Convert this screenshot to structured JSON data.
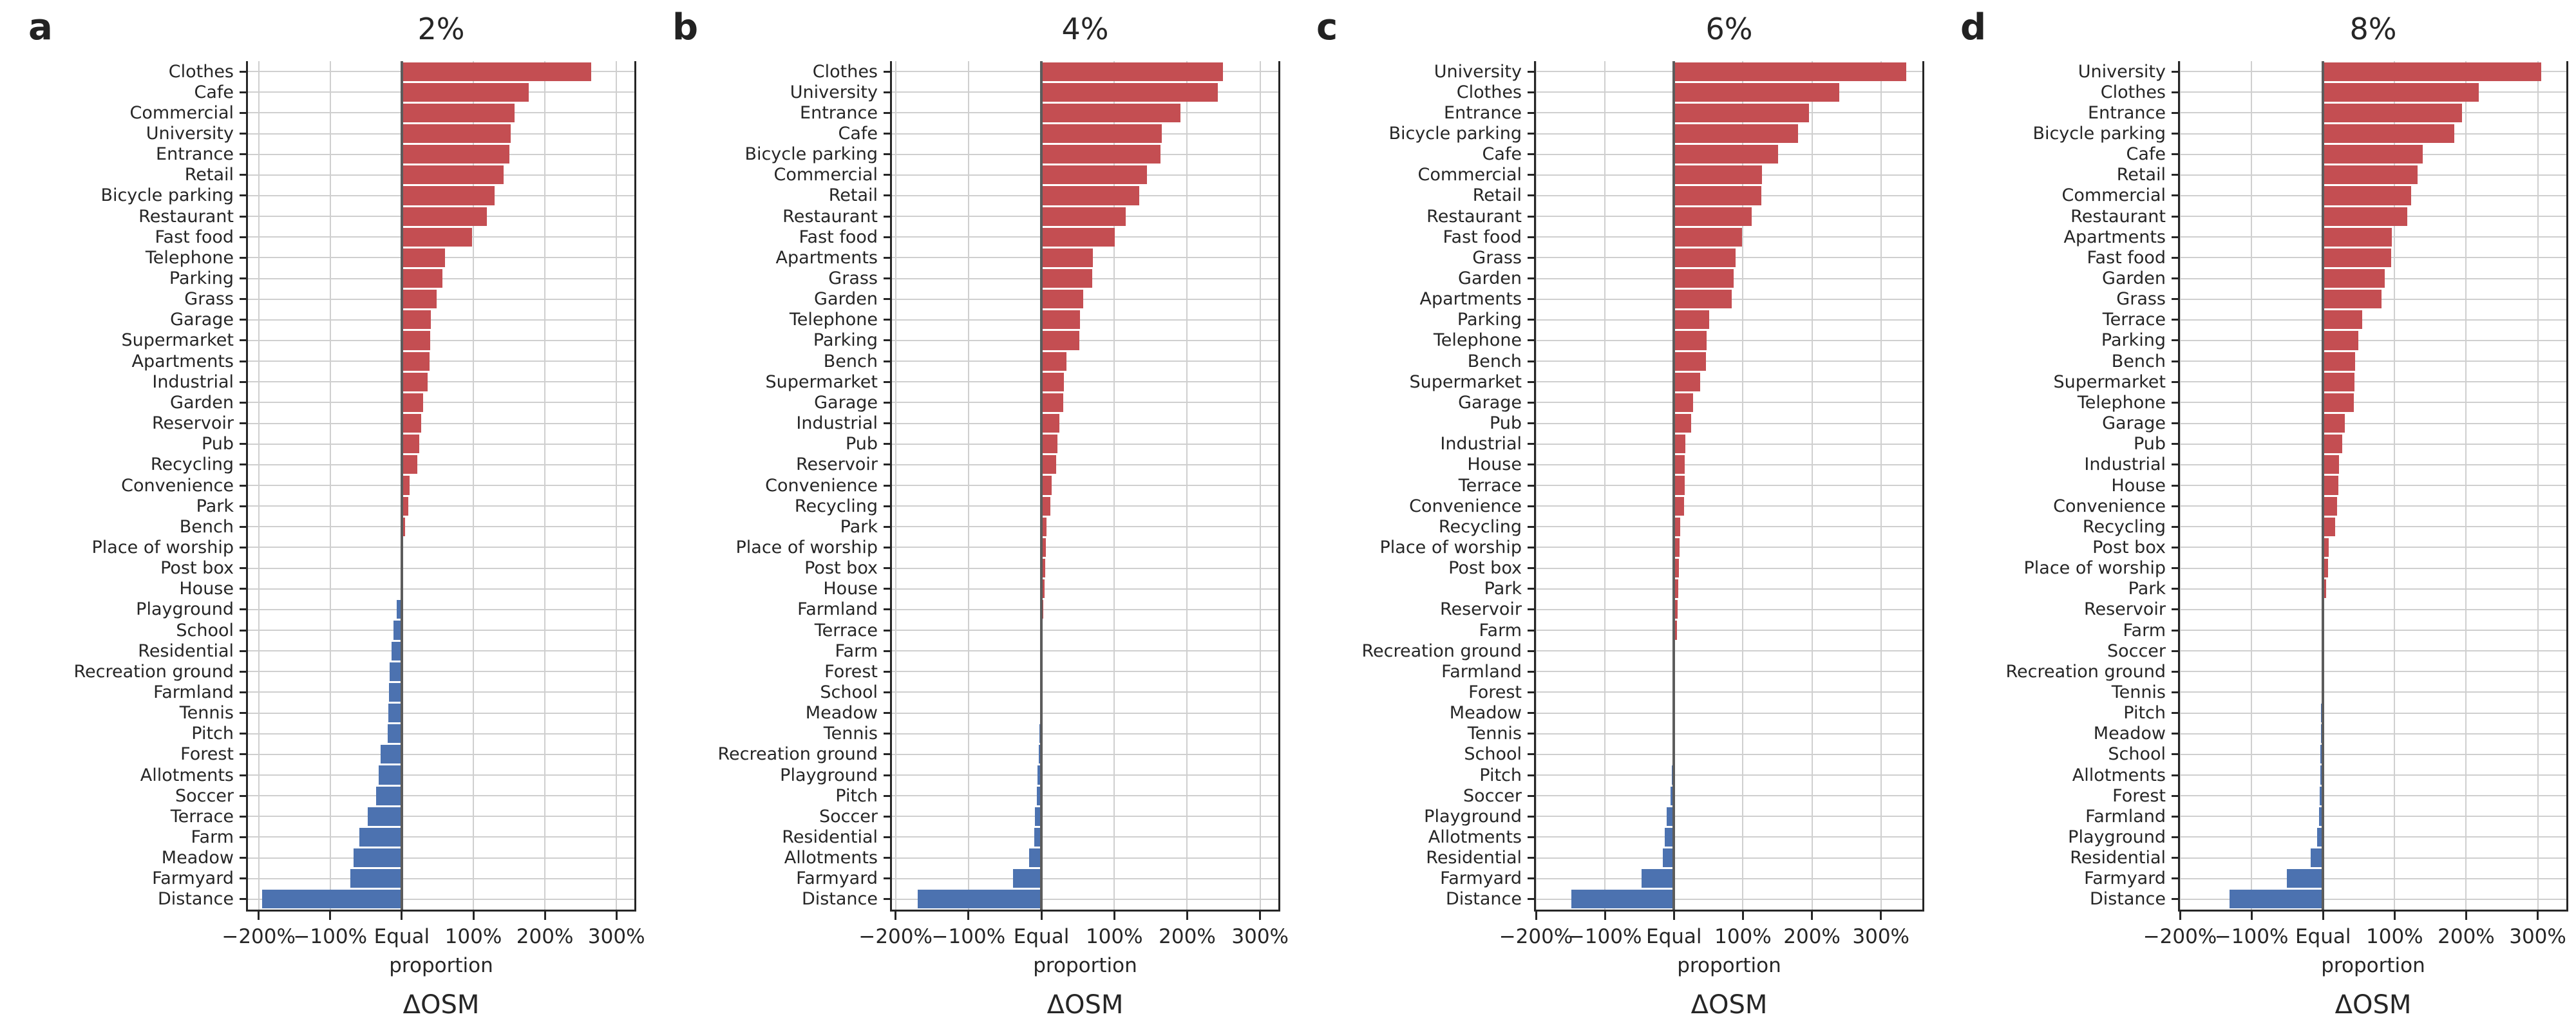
{
  "figure": {
    "xlabel": "proportion",
    "axis_note": "ΔOSM",
    "x_ticks": [
      {
        "v": -200,
        "label": "−200%"
      },
      {
        "v": -100,
        "label": "−100%"
      },
      {
        "v": 0,
        "label": "Equal"
      },
      {
        "v": 100,
        "label": "100%"
      },
      {
        "v": 200,
        "label": "200%"
      },
      {
        "v": 300,
        "label": "300%"
      }
    ],
    "colors": {
      "positive_bar": "#c44e52",
      "negative_bar": "#4c72b0",
      "gridline": "#cfcfcf",
      "equal_line": "#5c5c5c",
      "spine": "#262626",
      "text": "#262626"
    }
  },
  "chart_data": [
    {
      "type": "bar",
      "orientation": "horizontal",
      "panel_letter": "a",
      "title": "2%",
      "xlabel": "proportion",
      "axis_note": "ΔOSM",
      "xlim": [
        -215,
        325
      ],
      "grid": true,
      "categories": [
        "Clothes",
        "Cafe",
        "Commercial",
        "University",
        "Entrance",
        "Retail",
        "Bicycle parking",
        "Restaurant",
        "Fast food",
        "Telephone",
        "Parking",
        "Grass",
        "Garage",
        "Supermarket",
        "Apartments",
        "Industrial",
        "Garden",
        "Reservoir",
        "Pub",
        "Recycling",
        "Convenience",
        "Park",
        "Bench",
        "Place of worship",
        "Post box",
        "House",
        "Playground",
        "School",
        "Residential",
        "Recreation ground",
        "Farmland",
        "Tennis",
        "Pitch",
        "Forest",
        "Allotments",
        "Soccer",
        "Terrace",
        "Farm",
        "Meadow",
        "Farmyard",
        "Distance"
      ],
      "values": [
        265,
        177,
        158,
        152,
        150,
        142,
        130,
        119,
        98,
        60,
        57,
        49,
        41,
        40,
        39,
        36,
        30,
        27,
        24,
        22,
        11,
        9,
        5,
        2,
        1,
        0,
        -7,
        -12,
        -14,
        -17,
        -18,
        -19,
        -20,
        -30,
        -32,
        -36,
        -48,
        -59,
        -67,
        -72,
        -195
      ]
    },
    {
      "type": "bar",
      "orientation": "horizontal",
      "panel_letter": "b",
      "title": "4%",
      "xlabel": "proportion",
      "axis_note": "ΔOSM",
      "xlim": [
        -205,
        325
      ],
      "grid": true,
      "categories": [
        "Clothes",
        "University",
        "Entrance",
        "Cafe",
        "Bicycle parking",
        "Commercial",
        "Retail",
        "Restaurant",
        "Fast food",
        "Apartments",
        "Grass",
        "Garden",
        "Telephone",
        "Parking",
        "Bench",
        "Supermarket",
        "Garage",
        "Industrial",
        "Pub",
        "Reservoir",
        "Convenience",
        "Recycling",
        "Park",
        "Place of worship",
        "Post box",
        "House",
        "Farmland",
        "Terrace",
        "Farm",
        "Forest",
        "School",
        "Meadow",
        "Tennis",
        "Recreation ground",
        "Playground",
        "Pitch",
        "Soccer",
        "Residential",
        "Allotments",
        "Farmyard",
        "Distance"
      ],
      "values": [
        249,
        242,
        191,
        165,
        163,
        145,
        134,
        116,
        101,
        71,
        70,
        57,
        53,
        52,
        34,
        31,
        30,
        25,
        22,
        20,
        14,
        12,
        7,
        6,
        5,
        4,
        3,
        1,
        0.5,
        0.5,
        0,
        -2,
        -3,
        -4,
        -5,
        -6,
        -9,
        -10,
        -17,
        -39,
        -170
      ]
    },
    {
      "type": "bar",
      "orientation": "horizontal",
      "panel_letter": "c",
      "title": "6%",
      "xlabel": "proportion",
      "axis_note": "ΔOSM",
      "xlim": [
        -200,
        360
      ],
      "grid": true,
      "categories": [
        "University",
        "Clothes",
        "Entrance",
        "Bicycle parking",
        "Cafe",
        "Commercial",
        "Retail",
        "Restaurant",
        "Fast food",
        "Grass",
        "Garden",
        "Apartments",
        "Parking",
        "Telephone",
        "Bench",
        "Supermarket",
        "Garage",
        "Pub",
        "Industrial",
        "House",
        "Terrace",
        "Convenience",
        "Recycling",
        "Place of worship",
        "Post box",
        "Park",
        "Reservoir",
        "Farm",
        "Recreation ground",
        "Farmland",
        "Forest",
        "Meadow",
        "Tennis",
        "School",
        "Pitch",
        "Soccer",
        "Playground",
        "Allotments",
        "Residential",
        "Farmyard",
        "Distance"
      ],
      "values": [
        337,
        240,
        196,
        180,
        151,
        128,
        127,
        113,
        99,
        89,
        87,
        84,
        51,
        47,
        46,
        38,
        28,
        25,
        17,
        16,
        16,
        15,
        9,
        8,
        7,
        6,
        5,
        4,
        0.5,
        0.5,
        0,
        0,
        -2,
        -2.5,
        -3,
        -5,
        -11,
        -13,
        -16,
        -47,
        -149
      ]
    },
    {
      "type": "bar",
      "orientation": "horizontal",
      "panel_letter": "d",
      "title": "8%",
      "xlabel": "proportion",
      "axis_note": "ΔOSM",
      "xlim": [
        -200,
        340
      ],
      "grid": true,
      "categories": [
        "University",
        "Clothes",
        "Entrance",
        "Bicycle parking",
        "Cafe",
        "Retail",
        "Commercial",
        "Restaurant",
        "Apartments",
        "Fast food",
        "Garden",
        "Grass",
        "Terrace",
        "Parking",
        "Bench",
        "Supermarket",
        "Telephone",
        "Garage",
        "Pub",
        "Industrial",
        "House",
        "Convenience",
        "Recycling",
        "Post box",
        "Place of worship",
        "Park",
        "Reservoir",
        "Farm",
        "Soccer",
        "Recreation ground",
        "Tennis",
        "Pitch",
        "Meadow",
        "School",
        "Allotments",
        "Forest",
        "Farmland",
        "Playground",
        "Residential",
        "Farmyard",
        "Distance"
      ],
      "values": [
        305,
        218,
        194,
        183,
        139,
        132,
        123,
        118,
        96,
        95,
        86,
        82,
        55,
        49,
        45,
        44,
        43,
        30,
        27,
        22,
        21,
        20,
        17,
        8,
        7,
        4,
        0.5,
        0.5,
        0,
        0,
        -2,
        -2.5,
        -3,
        -3.5,
        -4,
        -5,
        -6,
        -8,
        -17,
        -51,
        -131
      ]
    }
  ]
}
